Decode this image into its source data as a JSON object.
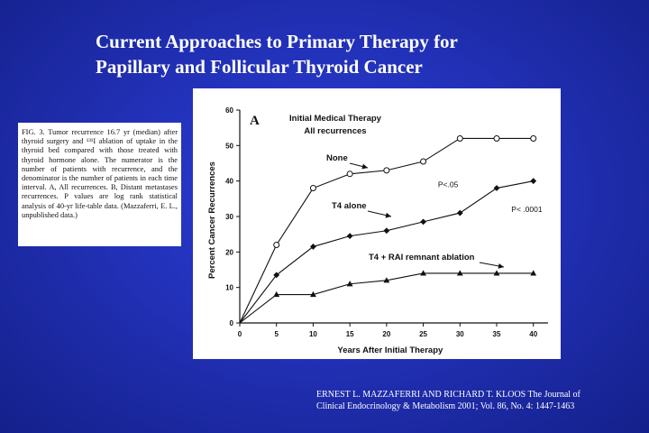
{
  "slide": {
    "title_line1": "Current Approaches to Primary Therapy for",
    "title_line2": "Papillary and Follicular Thyroid Cancer",
    "citation_line1": "ERNEST L. MAZZAFERRI AND RICHARD T. KLOOS The Journal of",
    "citation_line2": "Clinical Endocrinology & Metabolism 2001; Vol. 86, No. 4: 1447-1463"
  },
  "caption": {
    "text": "FIG. 3. Tumor recurrence 16.7 yr (median) after thyroid surgery and ¹³¹I ablation of uptake in the thyroid bed compared with those treated with thyroid hormone alone. The numerator is the number of patients with recurrence, and the denominator is the number of patients in each time interval. A, All recurrences. B, Distant metastases recurrences. P values are log rank statistical analysis of 40-yr life-table data. (Mazzaferri, E. L., unpublished data.)"
  },
  "chart_data": {
    "type": "line",
    "panel_label": "A",
    "title": "Initial Medical Therapy",
    "subtitle": "All recurrences",
    "xlabel": "Years After Initial Therapy",
    "ylabel": "Percent Cancer Recurrences",
    "xlim": [
      0,
      42
    ],
    "ylim": [
      0,
      60
    ],
    "xticks": [
      0,
      5,
      10,
      15,
      20,
      25,
      30,
      35,
      40
    ],
    "yticks": [
      0,
      10,
      20,
      30,
      40,
      50,
      60
    ],
    "grid": false,
    "series": [
      {
        "name": "None",
        "marker": "open-circle",
        "x": [
          0,
          5,
          10,
          15,
          20,
          25,
          30,
          35,
          40
        ],
        "y": [
          0,
          22,
          38,
          42,
          43,
          45.5,
          52,
          52,
          52
        ]
      },
      {
        "name": "T4 alone",
        "marker": "filled-diamond",
        "x": [
          0,
          5,
          10,
          15,
          20,
          25,
          30,
          35,
          40
        ],
        "y": [
          0,
          13.5,
          21.5,
          24.5,
          26,
          28.5,
          31,
          38,
          40
        ]
      },
      {
        "name": "T4 + RAI remnant ablation",
        "marker": "filled-triangle",
        "x": [
          0,
          5,
          10,
          15,
          20,
          25,
          30,
          35,
          40
        ],
        "y": [
          0,
          8,
          8,
          11,
          12,
          14,
          14,
          14,
          14
        ]
      }
    ],
    "annotations": [
      {
        "text": "P<.05",
        "x": 27,
        "y": 39
      },
      {
        "text": "P< .0001",
        "x": 37,
        "y": 32
      }
    ]
  }
}
